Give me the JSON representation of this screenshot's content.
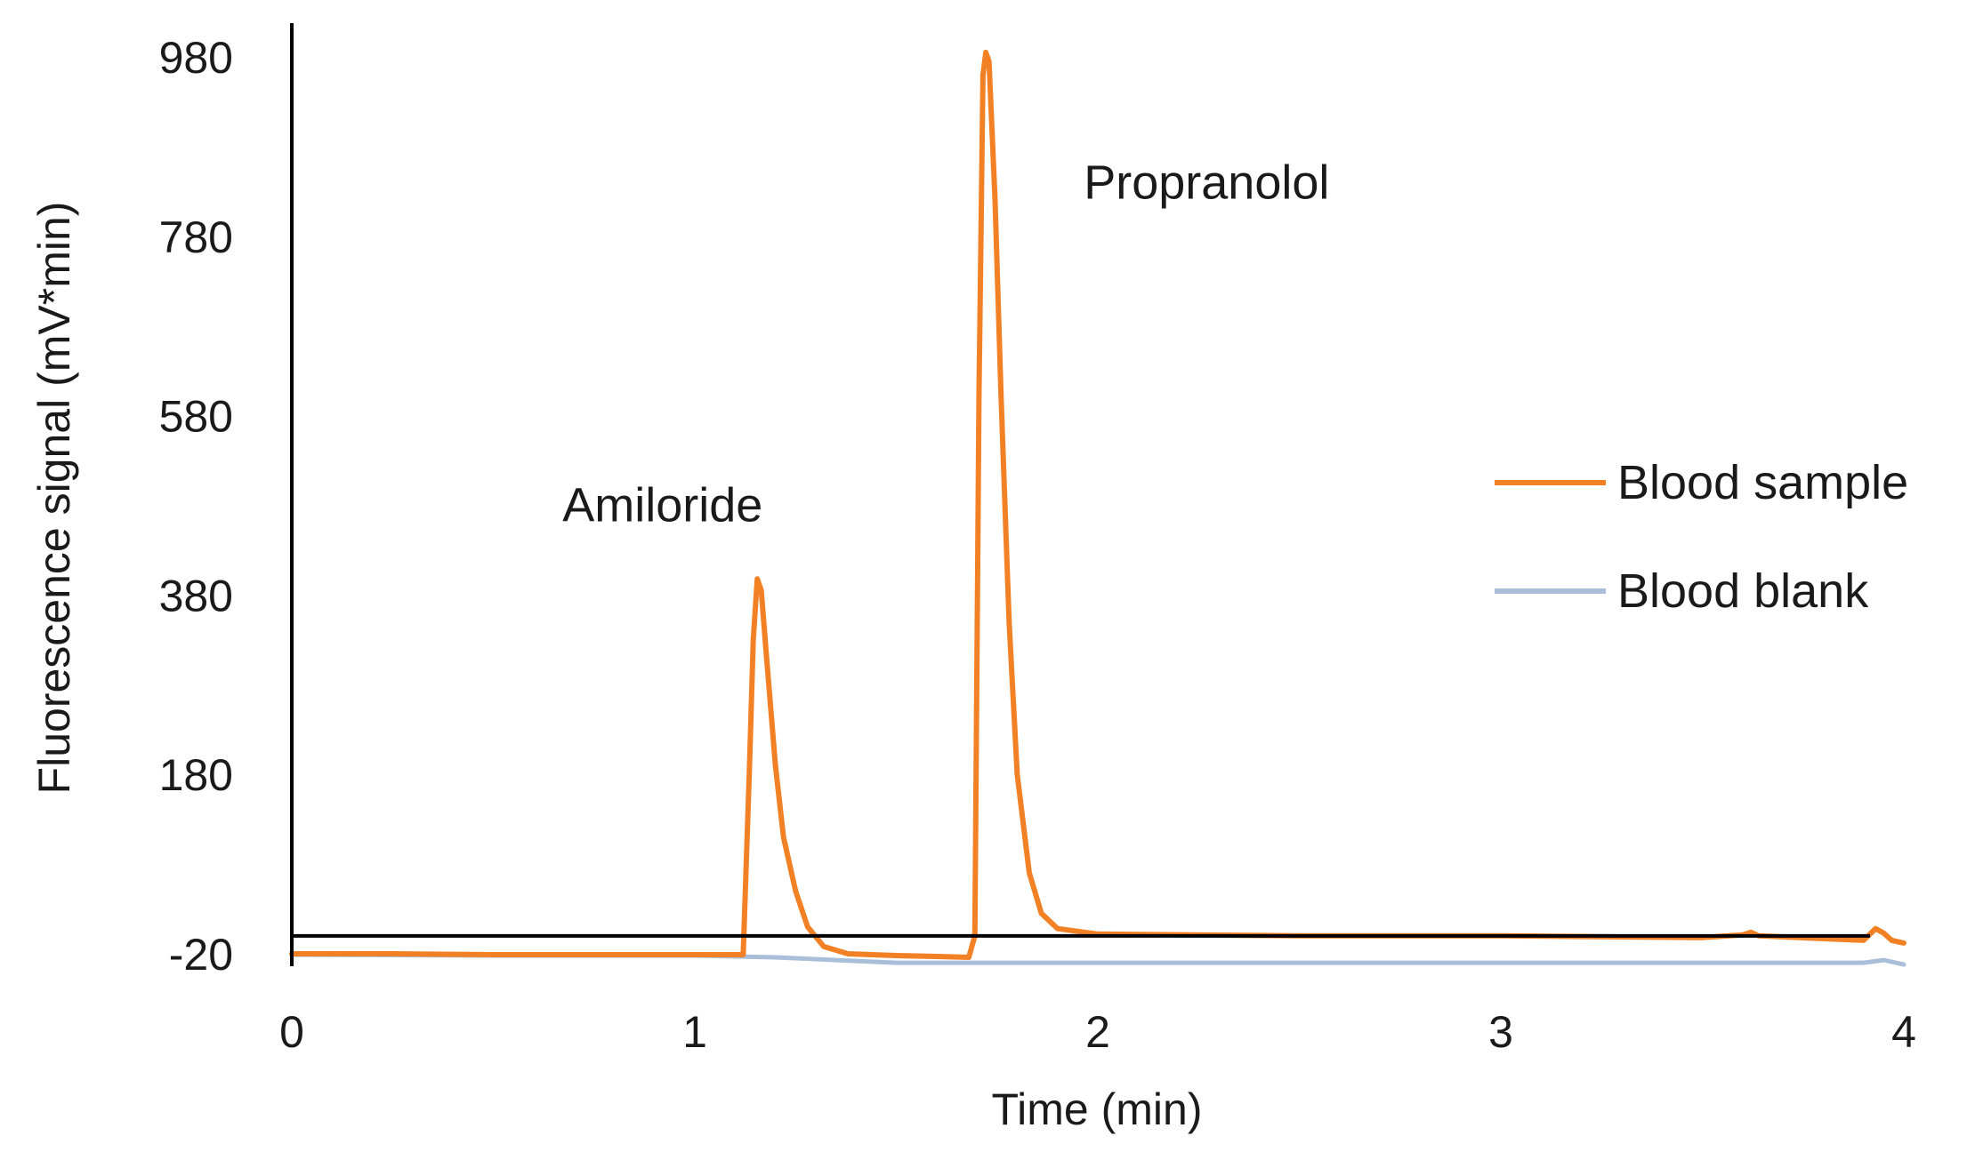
{
  "chart_data": {
    "type": "line",
    "title": "",
    "xlabel": "Time (min)",
    "ylabel": "Fluorescence signal (mV*min)",
    "xlim": [
      0,
      4
    ],
    "ylim": [
      -20,
      980
    ],
    "xticks": [
      0,
      1,
      2,
      3,
      4
    ],
    "yticks": [
      -20,
      180,
      380,
      580,
      780,
      980
    ],
    "grid": false,
    "legend_position": "right",
    "annotations": [
      {
        "text": "Amiloride",
        "x": 0.92,
        "y": 480
      },
      {
        "text": "Propranolol",
        "x": 2.27,
        "y": 840
      }
    ],
    "series": [
      {
        "name": "Blood sample",
        "color": "#f28126",
        "points": [
          [
            0,
            -20
          ],
          [
            0.25,
            -20
          ],
          [
            0.5,
            -21
          ],
          [
            1.0,
            -21
          ],
          [
            1.12,
            -21
          ],
          [
            1.135,
            180
          ],
          [
            1.145,
            330
          ],
          [
            1.155,
            398
          ],
          [
            1.165,
            385
          ],
          [
            1.18,
            300
          ],
          [
            1.2,
            190
          ],
          [
            1.22,
            110
          ],
          [
            1.25,
            50
          ],
          [
            1.28,
            10
          ],
          [
            1.32,
            -12
          ],
          [
            1.38,
            -20
          ],
          [
            1.5,
            -22
          ],
          [
            1.6,
            -23
          ],
          [
            1.68,
            -24
          ],
          [
            1.695,
            0
          ],
          [
            1.705,
            600
          ],
          [
            1.715,
            960
          ],
          [
            1.722,
            985
          ],
          [
            1.73,
            975
          ],
          [
            1.745,
            820
          ],
          [
            1.76,
            600
          ],
          [
            1.78,
            350
          ],
          [
            1.8,
            180
          ],
          [
            1.83,
            70
          ],
          [
            1.86,
            25
          ],
          [
            1.9,
            8
          ],
          [
            2.0,
            2
          ],
          [
            2.5,
            0
          ],
          [
            3.0,
            0
          ],
          [
            3.5,
            -2
          ],
          [
            3.6,
            1
          ],
          [
            3.62,
            4
          ],
          [
            3.64,
            0
          ],
          [
            3.9,
            -5
          ],
          [
            3.93,
            8
          ],
          [
            3.95,
            3
          ],
          [
            3.97,
            -5
          ],
          [
            4.0,
            -8
          ]
        ]
      },
      {
        "name": "Blood blank",
        "color": "#a9bfd9",
        "points": [
          [
            0,
            -21
          ],
          [
            0.5,
            -22
          ],
          [
            1.0,
            -22
          ],
          [
            1.2,
            -24
          ],
          [
            1.4,
            -28
          ],
          [
            1.5,
            -30
          ],
          [
            1.6,
            -30
          ],
          [
            1.8,
            -30
          ],
          [
            2.0,
            -30
          ],
          [
            2.5,
            -30
          ],
          [
            3.0,
            -30
          ],
          [
            3.5,
            -30
          ],
          [
            3.9,
            -30
          ],
          [
            3.95,
            -27
          ],
          [
            4.0,
            -32
          ]
        ]
      }
    ]
  }
}
